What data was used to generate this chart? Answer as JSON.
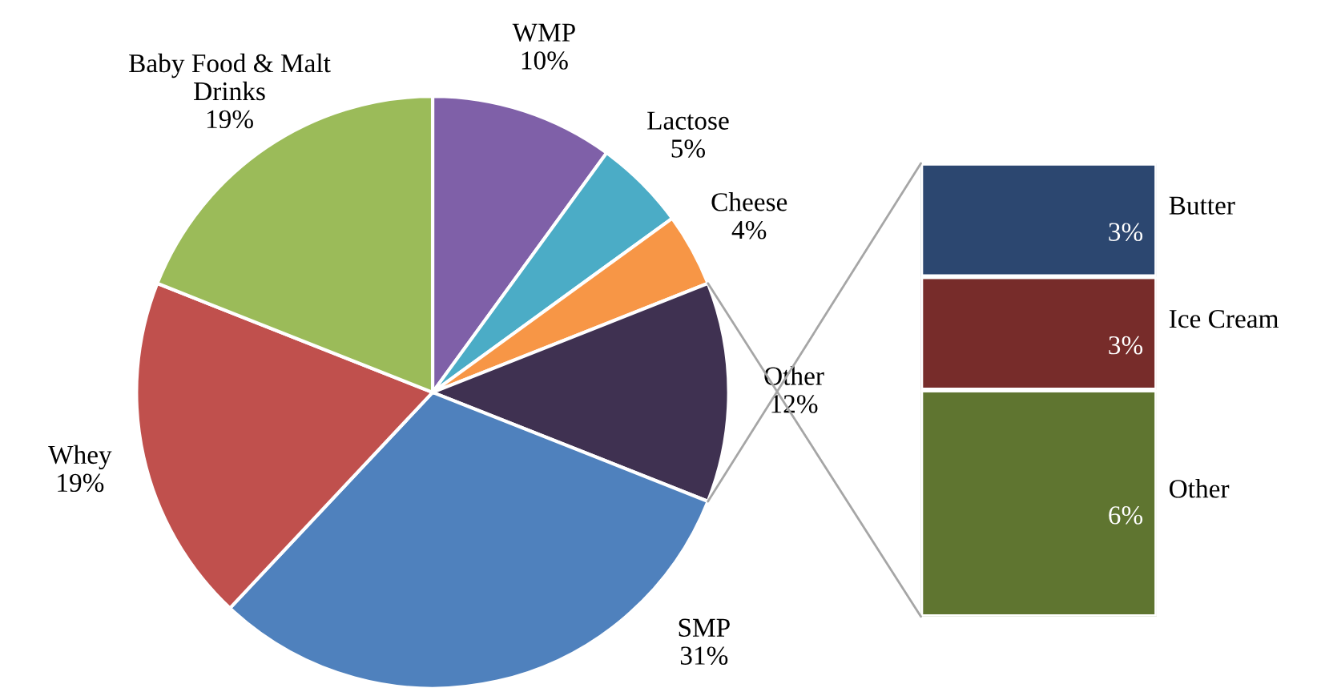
{
  "chart_data": [
    {
      "type": "pie",
      "categories": [
        "WMP",
        "Lactose",
        "Cheese",
        "Other",
        "SMP",
        "Whey",
        "Baby Food & Malt\nDrinks"
      ],
      "values": [
        10,
        5,
        4,
        12,
        31,
        19,
        19
      ],
      "value_labels": [
        "10%",
        "5%",
        "4%",
        "12%",
        "31%",
        "19%",
        "19%"
      ],
      "colors": [
        "#7f60a8",
        "#4bacc6",
        "#f79646",
        "#3f3151",
        "#4f81bd",
        "#c0504d",
        "#9bbb59"
      ]
    },
    {
      "type": "bar",
      "stacked": true,
      "categories": [
        null
      ],
      "series": [
        {
          "name": "Other",
          "color": "#5f7530",
          "values": [
            6
          ],
          "value_labels": [
            "6%"
          ]
        },
        {
          "name": "Ice Cream",
          "color": "#772c2a",
          "values": [
            3
          ],
          "value_labels": [
            "3%"
          ]
        },
        {
          "name": "Butter",
          "color": "#2c4770",
          "values": [
            3
          ],
          "value_labels": [
            "3%"
          ]
        }
      ]
    }
  ]
}
